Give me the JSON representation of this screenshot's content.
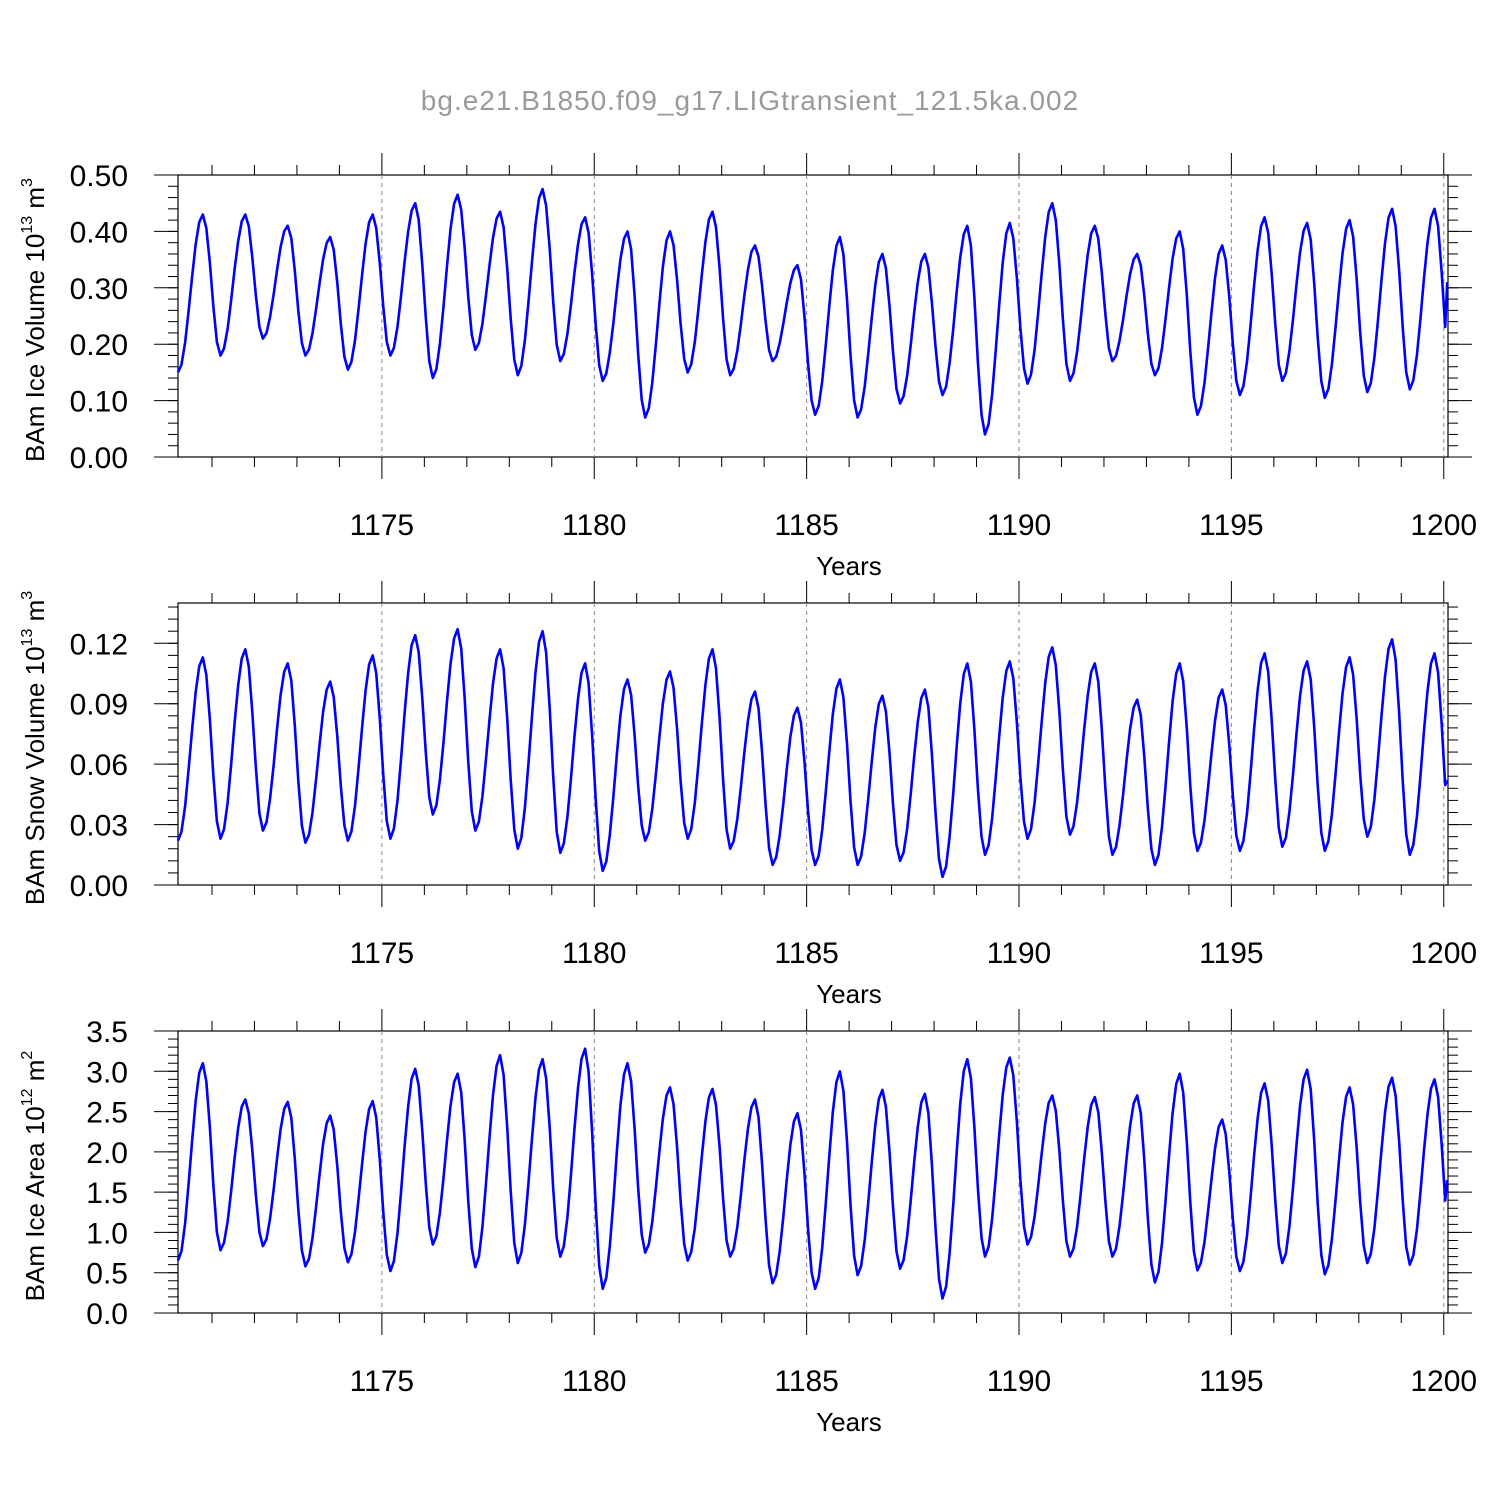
{
  "figure": {
    "title": "bg.e21.B1850.f09_g17.LIGtransient_121.5ka.002",
    "line_color": "#0000ff",
    "grid_color": "#888888"
  },
  "chart_data": [
    {
      "id": "ice-volume",
      "type": "line",
      "title": "bg.e21.B1850.f09_g17.LIGtransient_121.5ka.002",
      "ylabel": {
        "main": "BAm Ice Volume 10",
        "sup": "13",
        "unit": " m",
        "unit_sup": "3"
      },
      "xlabel": "Years",
      "xlim": [
        1170.2,
        1200.1
      ],
      "ylim": [
        0.0,
        0.5
      ],
      "x_ticks": [
        1175,
        1180,
        1185,
        1190,
        1195,
        1200
      ],
      "x_tick_labels": [
        "1175",
        "1180",
        "1185",
        "1190",
        "1195",
        "1200"
      ],
      "y_ticks": [
        0.0,
        0.1,
        0.2,
        0.3,
        0.4,
        0.5
      ],
      "y_tick_labels": [
        "0.00",
        "0.10",
        "0.20",
        "0.30",
        "0.40",
        "0.50"
      ],
      "grid": {
        "x": "dashed at major ticks",
        "y": "off"
      },
      "series": [
        {
          "x_start": 1170.2,
          "x_step": 1,
          "min": [
            0.15,
            0.18,
            0.21,
            0.18,
            0.155,
            0.18,
            0.14,
            0.19,
            0.145,
            0.17,
            0.135,
            0.07,
            0.15,
            0.145,
            0.17,
            0.075,
            0.07,
            0.095,
            0.11,
            0.04,
            0.13,
            0.135,
            0.17,
            0.145,
            0.075,
            0.11,
            0.135,
            0.105,
            0.115,
            0.12
          ],
          "max": [
            0.43,
            0.43,
            0.41,
            0.39,
            0.43,
            0.45,
            0.465,
            0.435,
            0.475,
            0.425,
            0.4,
            0.4,
            0.435,
            0.375,
            0.34,
            0.39,
            0.36,
            0.36,
            0.41,
            0.415,
            0.45,
            0.41,
            0.36,
            0.4,
            0.375,
            0.425,
            0.415,
            0.42,
            0.44,
            0.44
          ],
          "end_value": 0.31
        }
      ]
    },
    {
      "id": "snow-volume",
      "type": "line",
      "ylabel": {
        "main": "BAm Snow Volume 10",
        "sup": "13",
        "unit": " m",
        "unit_sup": "3"
      },
      "xlabel": "Years",
      "xlim": [
        1170.2,
        1200.1
      ],
      "ylim": [
        0.0,
        0.14
      ],
      "x_ticks": [
        1175,
        1180,
        1185,
        1190,
        1195,
        1200
      ],
      "x_tick_labels": [
        "1175",
        "1180",
        "1185",
        "1190",
        "1195",
        "1200"
      ],
      "y_ticks": [
        0.0,
        0.03,
        0.06,
        0.09,
        0.12
      ],
      "y_tick_labels": [
        "0.00",
        "0.03",
        "0.06",
        "0.09",
        "0.12"
      ],
      "grid": {
        "x": "dashed at major ticks",
        "y": "off"
      },
      "series": [
        {
          "x_start": 1170.2,
          "x_step": 1,
          "min": [
            0.022,
            0.023,
            0.027,
            0.021,
            0.022,
            0.023,
            0.035,
            0.027,
            0.018,
            0.016,
            0.007,
            0.022,
            0.023,
            0.018,
            0.01,
            0.01,
            0.01,
            0.012,
            0.004,
            0.015,
            0.023,
            0.025,
            0.015,
            0.01,
            0.017,
            0.017,
            0.019,
            0.017,
            0.024,
            0.015
          ],
          "max": [
            0.113,
            0.117,
            0.11,
            0.101,
            0.114,
            0.124,
            0.127,
            0.117,
            0.126,
            0.11,
            0.102,
            0.106,
            0.117,
            0.096,
            0.088,
            0.102,
            0.094,
            0.097,
            0.11,
            0.111,
            0.118,
            0.11,
            0.092,
            0.11,
            0.097,
            0.115,
            0.111,
            0.113,
            0.122,
            0.115
          ],
          "end_value": 0.052
        }
      ]
    },
    {
      "id": "ice-area",
      "type": "line",
      "ylabel": {
        "main": "BAm Ice Area 10",
        "sup": "12",
        "unit": " m",
        "unit_sup": "2"
      },
      "xlabel": "Years",
      "xlim": [
        1170.2,
        1200.1
      ],
      "ylim": [
        0.0,
        3.5
      ],
      "x_ticks": [
        1175,
        1180,
        1185,
        1190,
        1195,
        1200
      ],
      "x_tick_labels": [
        "1175",
        "1180",
        "1185",
        "1190",
        "1195",
        "1200"
      ],
      "y_ticks": [
        0.0,
        0.5,
        1.0,
        1.5,
        2.0,
        2.5,
        3.0,
        3.5
      ],
      "y_tick_labels": [
        "0.0",
        "0.5",
        "1.0",
        "1.5",
        "2.0",
        "2.5",
        "3.0",
        "3.5"
      ],
      "grid": {
        "x": "dashed at major ticks",
        "y": "off"
      },
      "series": [
        {
          "x_start": 1170.2,
          "x_step": 1,
          "min": [
            0.65,
            0.78,
            0.83,
            0.58,
            0.63,
            0.52,
            0.85,
            0.57,
            0.62,
            0.7,
            0.3,
            0.75,
            0.65,
            0.7,
            0.37,
            0.3,
            0.47,
            0.55,
            0.18,
            0.7,
            0.85,
            0.7,
            0.7,
            0.38,
            0.53,
            0.52,
            0.62,
            0.48,
            0.62,
            0.6
          ],
          "max": [
            3.1,
            2.65,
            2.62,
            2.45,
            2.63,
            3.03,
            2.97,
            3.2,
            3.15,
            3.28,
            3.1,
            2.8,
            2.78,
            2.65,
            2.48,
            3.0,
            2.77,
            2.72,
            3.15,
            3.17,
            2.7,
            2.68,
            2.7,
            2.97,
            2.4,
            2.85,
            3.02,
            2.8,
            2.92,
            2.9
          ],
          "end_value": 1.65
        }
      ]
    }
  ]
}
